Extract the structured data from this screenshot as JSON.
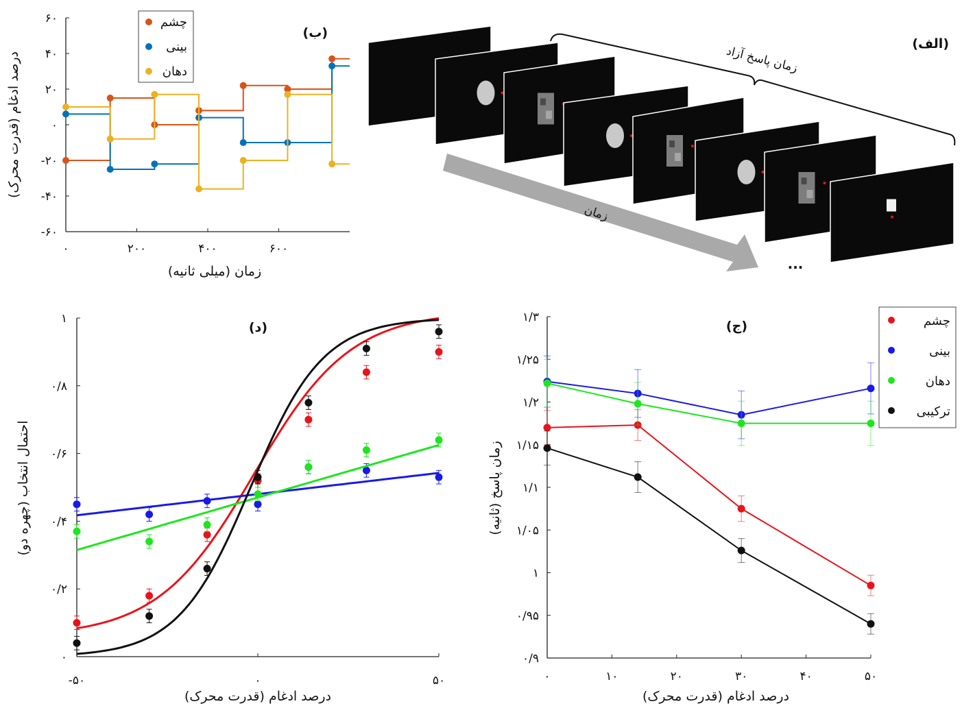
{
  "panel_a": {
    "label": "(الف)",
    "bracket_label": "زمان پاسخ آزاد",
    "arrow_label": "زمان",
    "ellipsis": "..."
  },
  "chart_data": [
    {
      "id": "b",
      "type": "line",
      "title": "(ب)",
      "xlabel": "زمان (میلی ثانیه)",
      "ylabel": "درصد ادغام (قدرت محرک)",
      "xlim": [
        0,
        800
      ],
      "ylim": [
        -60,
        60
      ],
      "xticks": [
        0,
        200,
        400,
        600
      ],
      "xtick_labels": [
        "۰",
        "۲۰۰",
        "۴۰۰",
        "۶۰۰"
      ],
      "yticks": [
        -60,
        -40,
        -20,
        0,
        20,
        40,
        60
      ],
      "ytick_labels": [
        "-۶۰",
        "-۴۰",
        "-۲۰",
        "۰",
        "۲۰",
        "۴۰",
        "۶۰"
      ],
      "step": true,
      "legend_position": "top-left",
      "x": [
        0,
        125,
        250,
        375,
        500,
        625,
        750
      ],
      "series": [
        {
          "name": "چشم",
          "color": "#d95319",
          "values": [
            -20,
            15,
            0,
            8,
            22,
            20,
            37
          ]
        },
        {
          "name": "بینی",
          "color": "#0072bd",
          "values": [
            6,
            -25,
            -22,
            4,
            -10,
            -10,
            33
          ]
        },
        {
          "name": "دهان",
          "color": "#edb120",
          "values": [
            10,
            -8,
            17,
            -36,
            -20,
            17,
            -22
          ]
        }
      ]
    },
    {
      "id": "c",
      "type": "line",
      "title": "(ج)",
      "xlabel": "درصد ادغام (قدرت محرک)",
      "ylabel": "زمان پاسخ (ثانیه)",
      "xlim": [
        0,
        50
      ],
      "ylim": [
        0.9,
        1.3
      ],
      "xticks": [
        0,
        10,
        20,
        30,
        40,
        50
      ],
      "xtick_labels": [
        "۰",
        "۱۰",
        "۲۰",
        "۳۰",
        "۴۰",
        "۵۰"
      ],
      "yticks": [
        0.9,
        0.95,
        1.0,
        1.05,
        1.1,
        1.15,
        1.2,
        1.25,
        1.3
      ],
      "ytick_labels": [
        "۰/۹",
        "۰/۹۵",
        "۱",
        "۱/۰۵",
        "۱/۱",
        "۱/۱۵",
        "۱/۲",
        "۱/۲۵",
        "۱/۳"
      ],
      "legend_position": "top-right",
      "x": [
        0,
        14,
        30,
        50
      ],
      "series": [
        {
          "name": "چشم",
          "color": "#e8141b",
          "values": [
            1.17,
            1.173,
            1.075,
            0.985
          ],
          "err": [
            0.02,
            0.018,
            0.015,
            0.012
          ]
        },
        {
          "name": "بینی",
          "color": "#1a1ae6",
          "values": [
            1.224,
            1.21,
            1.185,
            1.216
          ],
          "err": [
            0.03,
            0.028,
            0.028,
            0.03
          ]
        },
        {
          "name": "دهان",
          "color": "#1ee61e",
          "values": [
            1.222,
            1.198,
            1.175,
            1.175
          ],
          "err": [
            0.028,
            0.025,
            0.026,
            0.026
          ]
        },
        {
          "name": "ترکیبی",
          "color": "#111111",
          "values": [
            1.146,
            1.112,
            1.026,
            0.94
          ],
          "err": [
            0.02,
            0.018,
            0.014,
            0.012
          ]
        }
      ]
    },
    {
      "id": "d",
      "type": "scatter",
      "title": "(د)",
      "xlabel": "درصد ادغام (قدرت محرک)",
      "ylabel": "احتمال انتخاب (چهره دو)",
      "xlim": [
        -50,
        50
      ],
      "ylim": [
        0,
        1
      ],
      "xticks": [
        -50,
        0,
        50
      ],
      "xtick_labels": [
        "-۵۰",
        "۰",
        "۵۰"
      ],
      "yticks": [
        0,
        0.2,
        0.4,
        0.6,
        0.8,
        1
      ],
      "ytick_labels": [
        "۰",
        "۰/۲",
        "۰/۴",
        "۰/۶",
        "۰/۸",
        "۱"
      ],
      "x": [
        -50,
        -30,
        -14,
        0,
        14,
        30,
        50
      ],
      "series": [
        {
          "name": "چشم",
          "color": "#e8141b",
          "values": [
            0.1,
            0.18,
            0.36,
            0.52,
            0.7,
            0.84,
            0.9
          ],
          "fit": {
            "lower": 0.06,
            "upper": 1.02,
            "mid": -1,
            "slope": 0.075
          }
        },
        {
          "name": "بینی",
          "color": "#1a1ae6",
          "values": [
            0.45,
            0.42,
            0.46,
            0.45,
            0.56,
            0.55,
            0.53
          ],
          "fit": {
            "intercept": 0.48,
            "slope_lin": 0.00125
          }
        },
        {
          "name": "دهان",
          "color": "#1ee61e",
          "values": [
            0.37,
            0.34,
            0.39,
            0.48,
            0.56,
            0.61,
            0.64
          ],
          "fit": {
            "intercept": 0.47,
            "slope_lin": 0.0031
          }
        },
        {
          "name": "ترکیبی",
          "color": "#111111",
          "values": [
            0.04,
            0.12,
            0.26,
            0.53,
            0.75,
            0.91,
            0.96
          ],
          "fit": {
            "lower": 0.0,
            "upper": 1.0,
            "mid": -2,
            "slope": 0.1
          }
        }
      ]
    }
  ]
}
